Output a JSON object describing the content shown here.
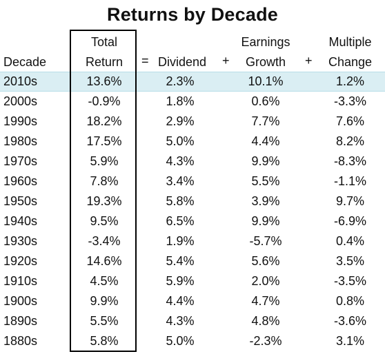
{
  "title": "Returns by Decade",
  "headers": {
    "decade": "Decade",
    "total_line1": "Total",
    "total_line2": "Return",
    "equals": "=",
    "dividend": "Dividend",
    "plus1": "+",
    "earnings_line1": "Earnings",
    "earnings_line2": "Growth",
    "plus2": "+",
    "multiple_line1": "Multiple",
    "multiple_line2": "Change"
  },
  "highlight_color": "#daeef3",
  "rows": [
    {
      "decade": "2010s",
      "total": "13.6%",
      "dividend": "2.3%",
      "earnings": "10.1%",
      "multiple": "1.2%"
    },
    {
      "decade": "2000s",
      "total": "-0.9%",
      "dividend": "1.8%",
      "earnings": "0.6%",
      "multiple": "-3.3%"
    },
    {
      "decade": "1990s",
      "total": "18.2%",
      "dividend": "2.9%",
      "earnings": "7.7%",
      "multiple": "7.6%"
    },
    {
      "decade": "1980s",
      "total": "17.5%",
      "dividend": "5.0%",
      "earnings": "4.4%",
      "multiple": "8.2%"
    },
    {
      "decade": "1970s",
      "total": "5.9%",
      "dividend": "4.3%",
      "earnings": "9.9%",
      "multiple": "-8.3%"
    },
    {
      "decade": "1960s",
      "total": "7.8%",
      "dividend": "3.4%",
      "earnings": "5.5%",
      "multiple": "-1.1%"
    },
    {
      "decade": "1950s",
      "total": "19.3%",
      "dividend": "5.8%",
      "earnings": "3.9%",
      "multiple": "9.7%"
    },
    {
      "decade": "1940s",
      "total": "9.5%",
      "dividend": "6.5%",
      "earnings": "9.9%",
      "multiple": "-6.9%"
    },
    {
      "decade": "1930s",
      "total": "-3.4%",
      "dividend": "1.9%",
      "earnings": "-5.7%",
      "multiple": "0.4%"
    },
    {
      "decade": "1920s",
      "total": "14.6%",
      "dividend": "5.4%",
      "earnings": "5.6%",
      "multiple": "3.5%"
    },
    {
      "decade": "1910s",
      "total": "4.5%",
      "dividend": "5.9%",
      "earnings": "2.0%",
      "multiple": "-3.5%"
    },
    {
      "decade": "1900s",
      "total": "9.9%",
      "dividend": "4.4%",
      "earnings": "4.7%",
      "multiple": "0.8%"
    },
    {
      "decade": "1890s",
      "total": "5.5%",
      "dividend": "4.3%",
      "earnings": "4.8%",
      "multiple": "-3.6%"
    },
    {
      "decade": "1880s",
      "total": "5.8%",
      "dividend": "5.0%",
      "earnings": "-2.3%",
      "multiple": "3.1%"
    }
  ]
}
